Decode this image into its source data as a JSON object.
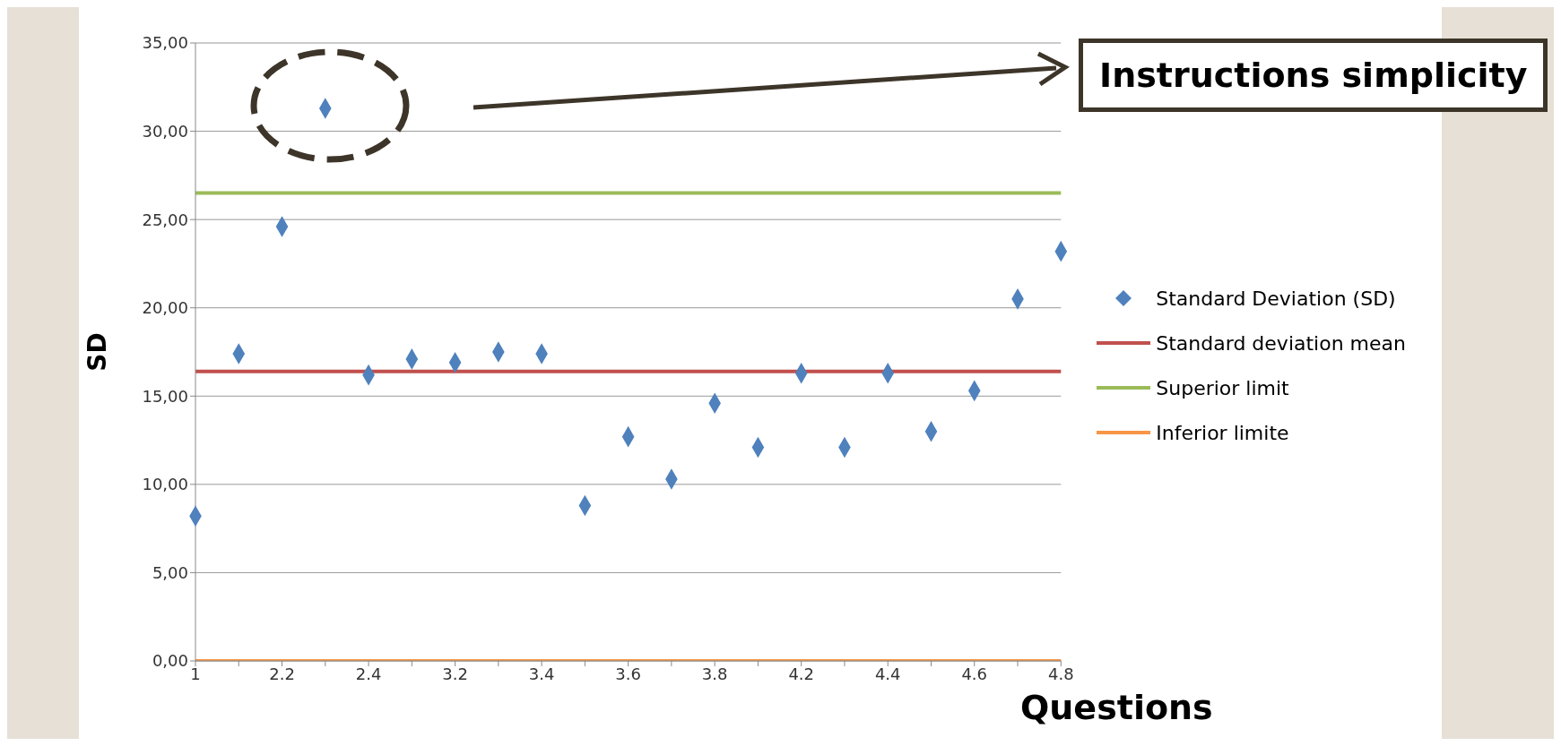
{
  "chart_data": {
    "type": "scatter",
    "xlabel": "Questions",
    "ylabel": "SD",
    "categories": [
      "1",
      null,
      "2.2",
      null,
      "2.4",
      null,
      "3.2",
      null,
      "3.4",
      null,
      "3.6",
      null,
      "3.8",
      null,
      "4.2",
      null,
      "4.4",
      null,
      "4.6",
      null,
      "4.8"
    ],
    "series": [
      {
        "name": "Standard Deviation (SD)",
        "marker": "diamond",
        "color": "#4f81bd",
        "values": [
          8.2,
          17.4,
          24.6,
          31.3,
          16.2,
          17.1,
          16.9,
          17.5,
          17.4,
          8.8,
          12.7,
          10.3,
          14.6,
          12.1,
          16.3,
          12.1,
          16.3,
          13.0,
          15.3,
          20.5,
          23.2
        ]
      },
      {
        "name": "Standard deviation mean",
        "type": "line",
        "marker": "none",
        "color": "#c0504d",
        "values": [
          16.4,
          16.4,
          16.4,
          16.4,
          16.4,
          16.4,
          16.4,
          16.4,
          16.4,
          16.4,
          16.4,
          16.4,
          16.4,
          16.4,
          16.4,
          16.4,
          16.4,
          16.4,
          16.4,
          16.4,
          16.4
        ]
      },
      {
        "name": "Superior limit",
        "type": "line",
        "marker": "none",
        "color": "#9bbb59",
        "values": [
          26.5,
          26.5,
          26.5,
          26.5,
          26.5,
          26.5,
          26.5,
          26.5,
          26.5,
          26.5,
          26.5,
          26.5,
          26.5,
          26.5,
          26.5,
          26.5,
          26.5,
          26.5,
          26.5,
          26.5,
          26.5
        ]
      },
      {
        "name": "Inferior limite",
        "type": "line",
        "marker": "none",
        "color": "#f79646",
        "values": [
          0,
          0,
          0,
          0,
          0,
          0,
          0,
          0,
          0,
          0,
          0,
          0,
          0,
          0,
          0,
          0,
          0,
          0,
          0,
          0,
          0
        ]
      }
    ],
    "ylim": [
      0,
      35
    ],
    "yticks": [
      {
        "value": 0,
        "label": "0,00"
      },
      {
        "value": 5,
        "label": "5,00"
      },
      {
        "value": 10,
        "label": "10,00"
      },
      {
        "value": 15,
        "label": "15,00"
      },
      {
        "value": 20,
        "label": "20,00"
      },
      {
        "value": 25,
        "label": "25,00"
      },
      {
        "value": 30,
        "label": "30,00"
      },
      {
        "value": 35,
        "label": "35,00"
      }
    ],
    "grid": "y",
    "legend": "right",
    "annotations": [
      "Instructions simplicity"
    ]
  }
}
